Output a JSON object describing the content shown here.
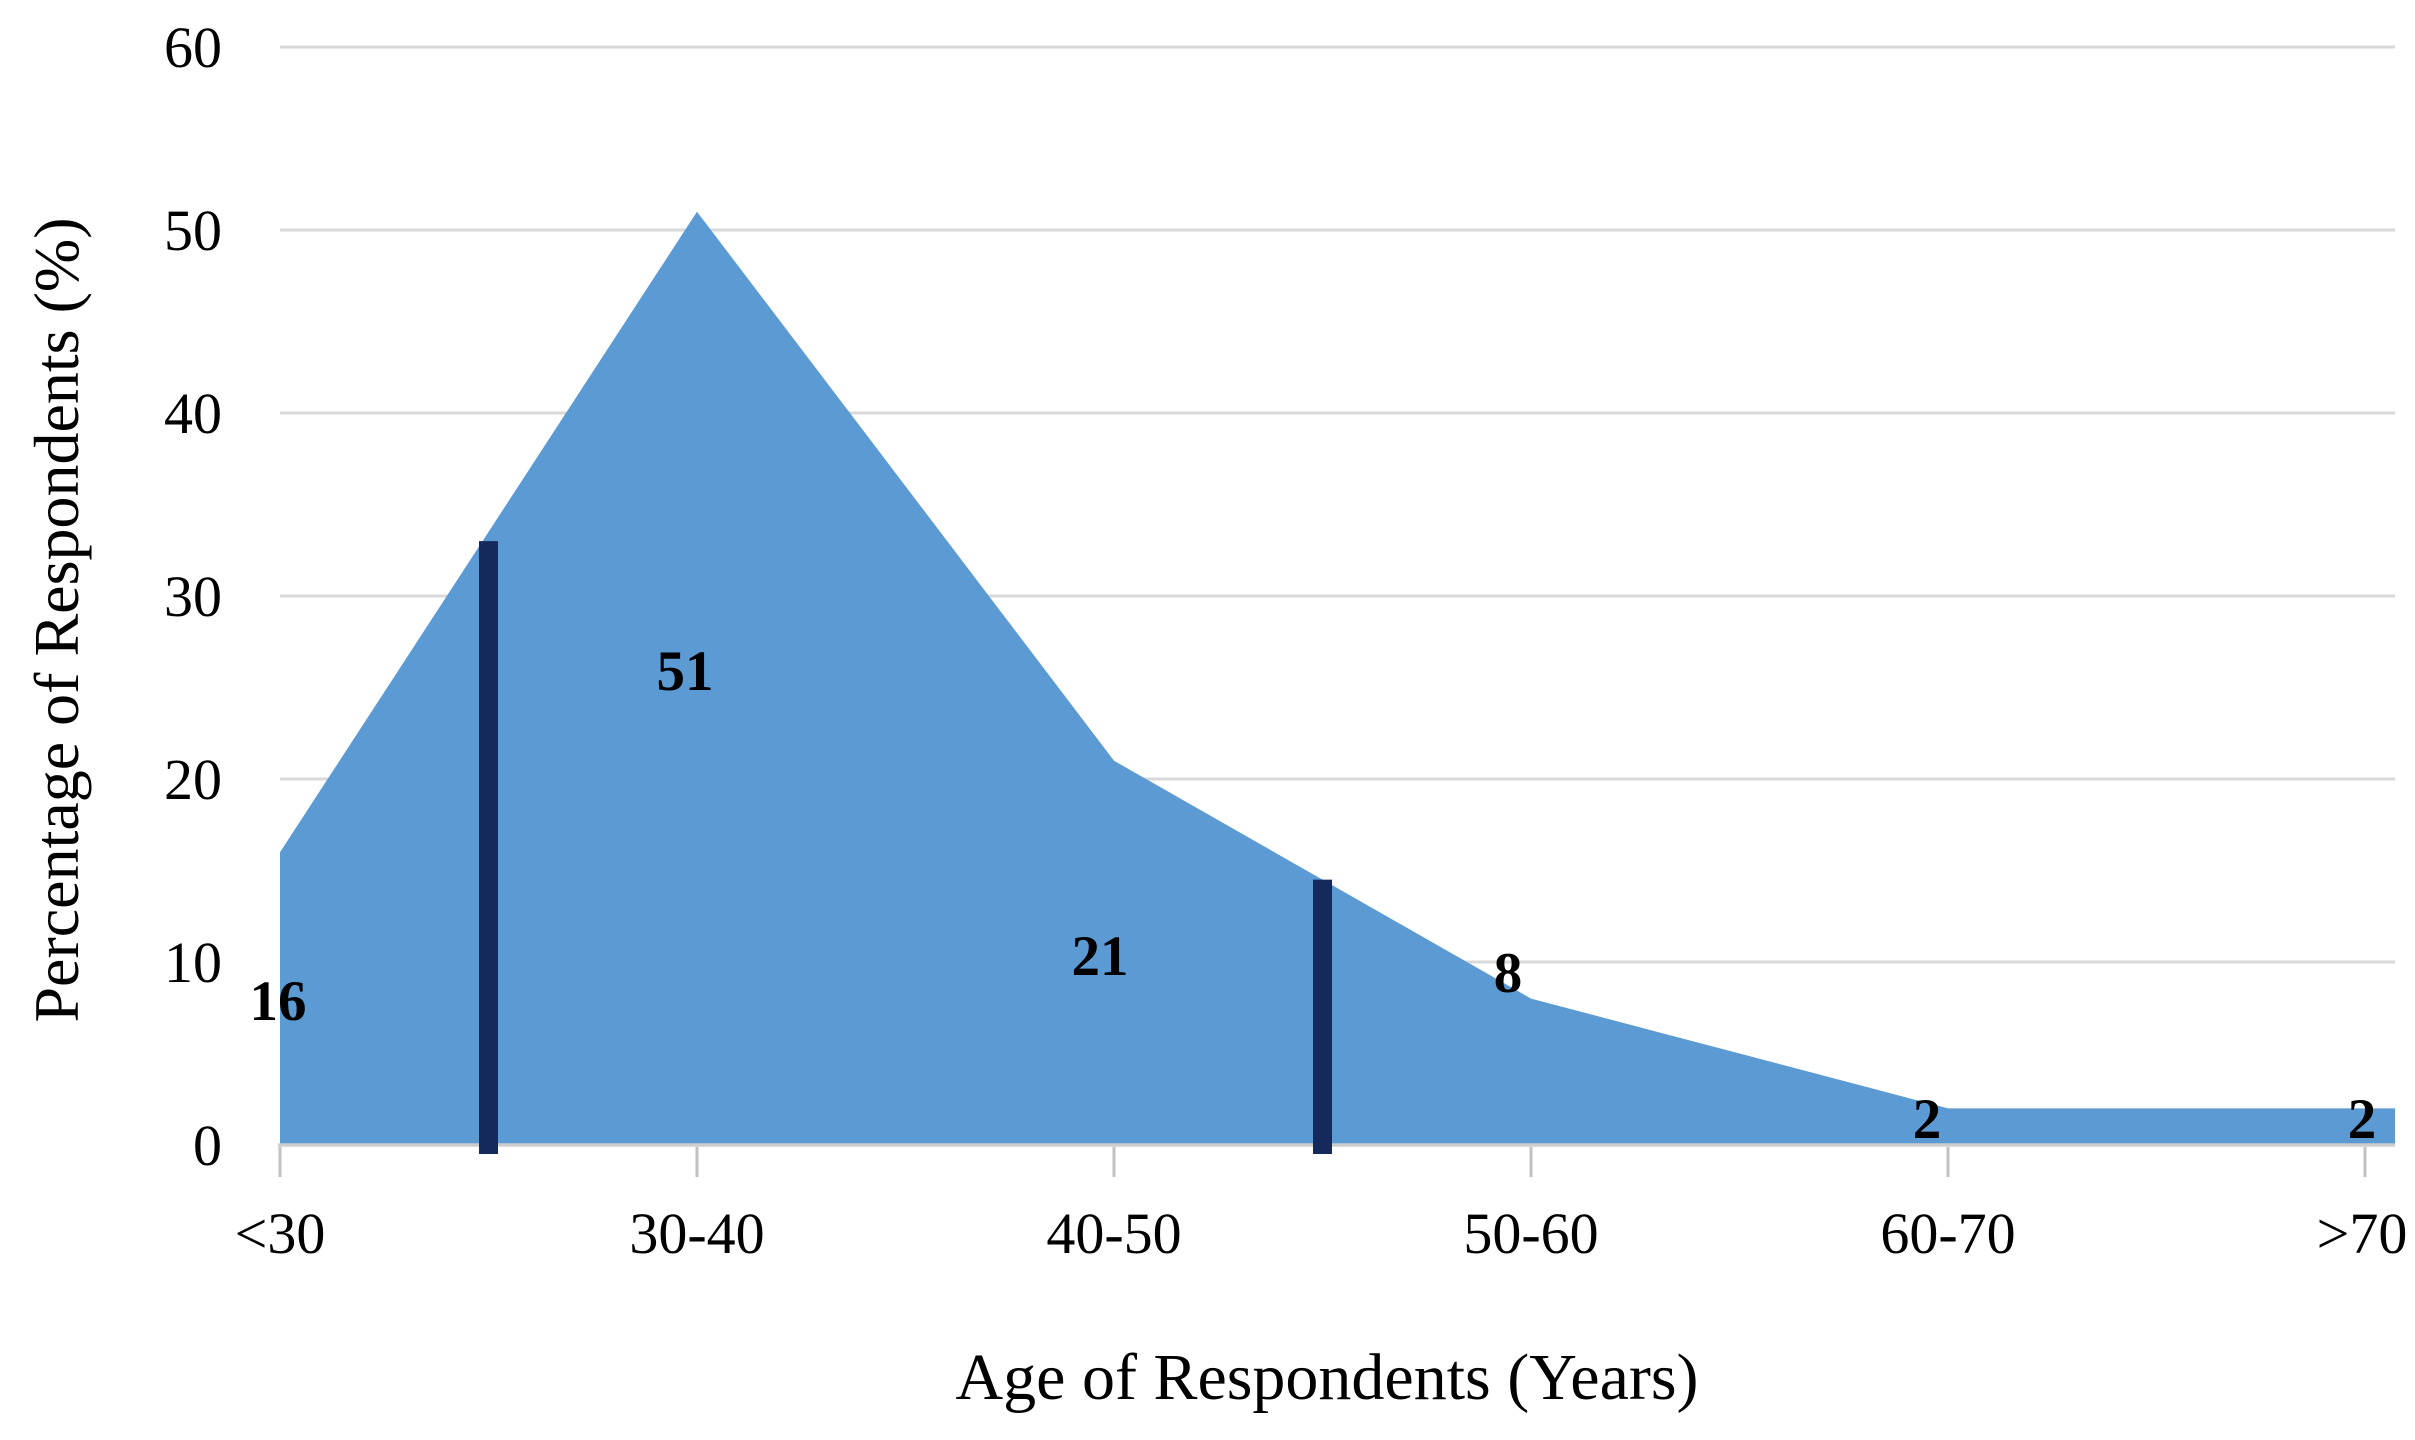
{
  "chart_data": {
    "type": "area",
    "title": "",
    "xlabel": "Age of Respondents (Years)",
    "ylabel": "Percentage of Respondents (%)",
    "categories": [
      "<30",
      "30-40",
      "40-50",
      "50-60",
      "60-70",
      ">70"
    ],
    "series": [
      {
        "name": "Percentage of Respondents",
        "values": [
          16,
          51,
          21,
          8,
          2,
          2
        ]
      }
    ],
    "data_labels": [
      "16",
      "51",
      "21",
      "8",
      "2",
      "2"
    ],
    "ylim": [
      0,
      60
    ],
    "yticks": [
      0,
      10,
      20,
      30,
      40,
      50,
      60
    ],
    "grid": "horizontal",
    "legend": "none",
    "markers": [
      {
        "between": [
          "<30",
          "30-40"
        ],
        "top": 33
      },
      {
        "between": [
          "40-50",
          "50-60"
        ],
        "top": 14.5
      }
    ],
    "colors": {
      "area_fill": "#5b9ad3",
      "marker_bar": "#16295d",
      "gridline": "#d9d9d9",
      "axis_line": "#cdcdcd",
      "tick": "#c2c2c2",
      "text": "#000000",
      "background": "#ffffff"
    }
  }
}
